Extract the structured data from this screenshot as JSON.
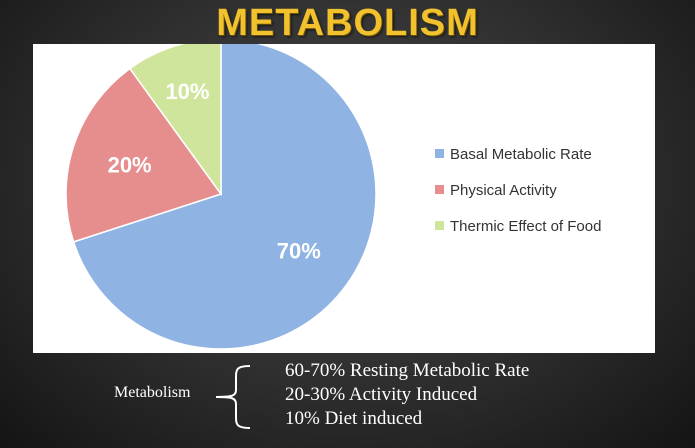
{
  "title": "METABOLISM",
  "chart_data": {
    "type": "pie",
    "categories": [
      "Basal Metabolic Rate",
      "Physical Activity",
      "Thermic Effect of Food"
    ],
    "values": [
      70,
      20,
      10
    ],
    "data_labels": [
      "70%",
      "20%",
      "10%"
    ],
    "colors": [
      "#8fb3e3",
      "#e68e8e",
      "#cfe59b"
    ],
    "legend_position": "right"
  },
  "summary": {
    "label": "Metabolism",
    "lines": [
      "60-70% Resting Metabolic Rate",
      "20-30% Activity Induced",
      "10% Diet induced"
    ]
  }
}
